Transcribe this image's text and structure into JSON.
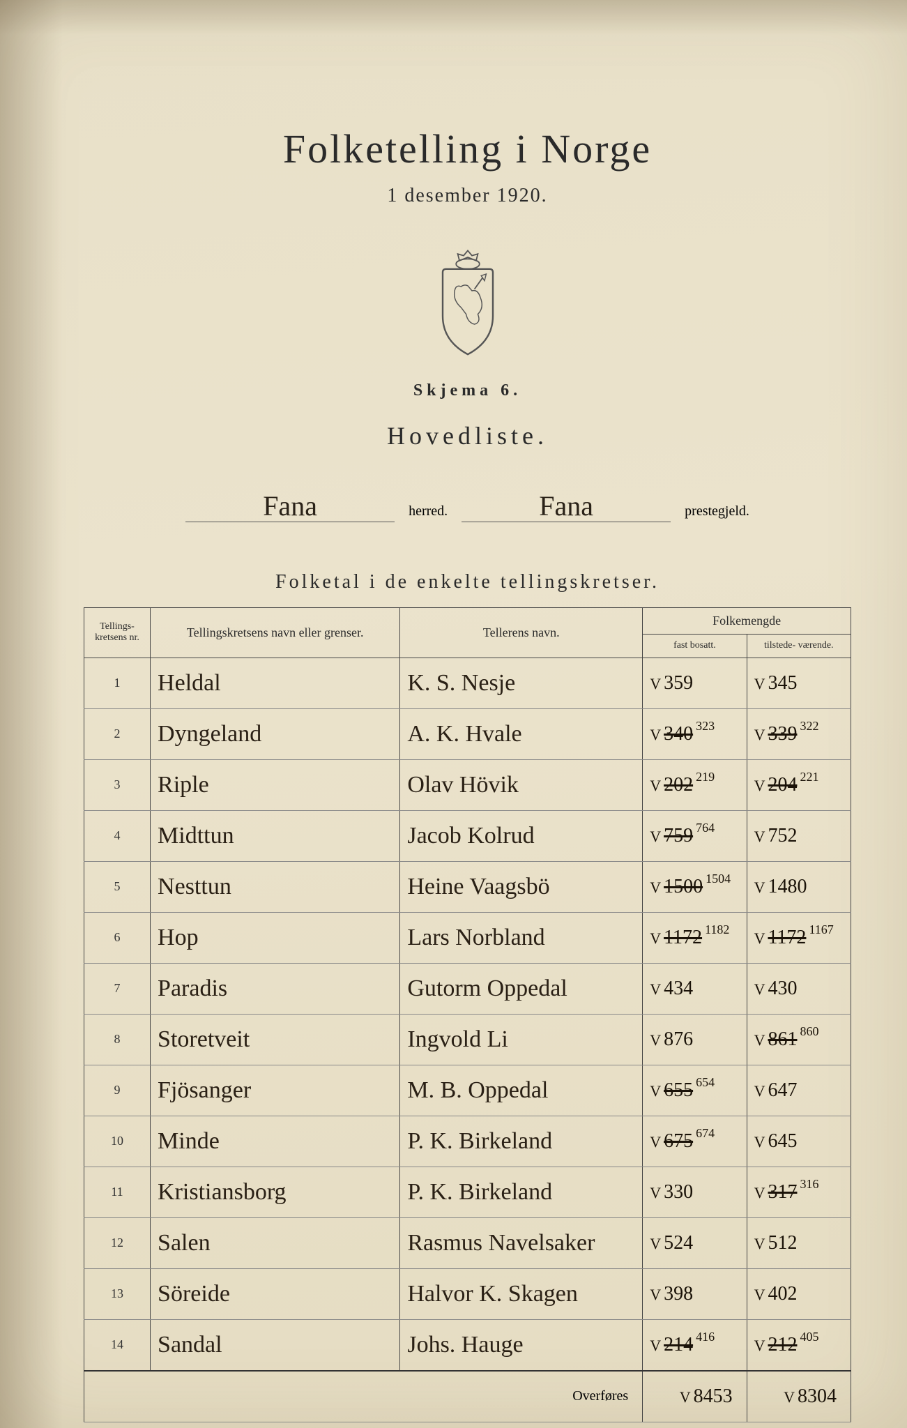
{
  "title": "Folketelling i Norge",
  "subtitle": "1 desember 1920.",
  "skjema": "Skjema 6.",
  "hovedliste": "Hovedliste.",
  "herred_value": "Fana",
  "herred_label": "herred.",
  "prestegjeld_value": "Fana",
  "prestegjeld_label": "prestegjeld.",
  "section_heading": "Folketal i de enkelte tellingskretser.",
  "columns": {
    "nr": "Tellings-\nkretsens\nnr.",
    "navn": "Tellingskretsens navn eller grenser.",
    "teller": "Tellerens navn.",
    "folk": "Folkemengde",
    "fast": "fast\nbosatt.",
    "tilstede": "tilstede-\nværende."
  },
  "rows": [
    {
      "nr": "1",
      "navn": "Heldal",
      "teller": "K. S. Nesje",
      "fast": "359",
      "fast_corr": "",
      "til": "345",
      "til_corr": ""
    },
    {
      "nr": "2",
      "navn": "Dyngeland",
      "teller": "A. K. Hvale",
      "fast": "340",
      "fast_corr": "323",
      "til": "339",
      "til_corr": "322"
    },
    {
      "nr": "3",
      "navn": "Riple",
      "teller": "Olav Hövik",
      "fast": "202",
      "fast_corr": "219",
      "til": "204",
      "til_corr": "221"
    },
    {
      "nr": "4",
      "navn": "Midttun",
      "teller": "Jacob Kolrud",
      "fast": "759",
      "fast_corr": "764",
      "til": "752",
      "til_corr": ""
    },
    {
      "nr": "5",
      "navn": "Nesttun",
      "teller": "Heine Vaagsbö",
      "fast": "1500",
      "fast_corr": "1504",
      "til": "1480",
      "til_corr": ""
    },
    {
      "nr": "6",
      "navn": "Hop",
      "teller": "Lars Norbland",
      "fast": "1172",
      "fast_corr": "1182",
      "til": "1172",
      "til_corr": "1167"
    },
    {
      "nr": "7",
      "navn": "Paradis",
      "teller": "Gutorm Oppedal",
      "fast": "434",
      "fast_corr": "",
      "til": "430",
      "til_corr": ""
    },
    {
      "nr": "8",
      "navn": "Storetveit",
      "teller": "Ingvold Li",
      "fast": "876",
      "fast_corr": "",
      "til": "861",
      "til_corr": "860"
    },
    {
      "nr": "9",
      "navn": "Fjösanger",
      "teller": "M. B. Oppedal",
      "fast": "655",
      "fast_corr": "654",
      "til": "647",
      "til_corr": ""
    },
    {
      "nr": "10",
      "navn": "Minde",
      "teller": "P. K. Birkeland",
      "fast": "675",
      "fast_corr": "674",
      "til": "645",
      "til_corr": ""
    },
    {
      "nr": "11",
      "navn": "Kristiansborg",
      "teller": "P. K. Birkeland",
      "fast": "330",
      "fast_corr": "",
      "til": "317",
      "til_corr": "316"
    },
    {
      "nr": "12",
      "navn": "Salen",
      "teller": "Rasmus Navelsaker",
      "fast": "524",
      "fast_corr": "",
      "til": "512",
      "til_corr": ""
    },
    {
      "nr": "13",
      "navn": "Söreide",
      "teller": "Halvor K. Skagen",
      "fast": "398",
      "fast_corr": "",
      "til": "402",
      "til_corr": ""
    },
    {
      "nr": "14",
      "navn": "Sandal",
      "teller": "Johs. Hauge",
      "fast": "214",
      "fast_corr": "416",
      "til": "212",
      "til_corr": "405"
    }
  ],
  "overfores_label": "Overføres",
  "total_fast": "8453",
  "total_til": "8304"
}
